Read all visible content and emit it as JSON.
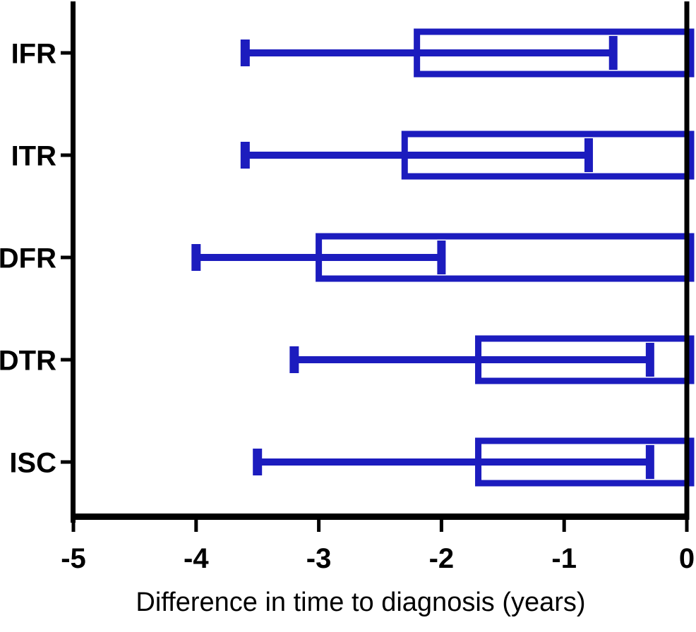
{
  "chart_data": {
    "type": "bar",
    "orientation": "horizontal",
    "title": "",
    "xlabel": "Difference in time to diagnosis (years)",
    "ylabel": "",
    "categories": [
      "IFR",
      "ITR",
      "DFR",
      "DTR",
      "ISC"
    ],
    "series": [
      {
        "name": "Difference in time to diagnosis",
        "values": [
          -2.2,
          -2.3,
          -3.0,
          -1.7,
          -1.7
        ],
        "error_low": [
          -3.6,
          -3.6,
          -4.0,
          -3.2,
          -3.5
        ],
        "error_high": [
          -0.6,
          -0.8,
          -2.0,
          -0.3,
          -0.3
        ]
      }
    ],
    "xlim": [
      -5,
      0
    ],
    "xticks": [
      -5,
      -4,
      -3,
      -2,
      -1,
      0
    ],
    "xtick_labels": [
      "-5",
      "-4",
      "-3",
      "-2",
      "-1",
      "0"
    ],
    "grid": false,
    "legend": null,
    "colors": {
      "bar_stroke": "#1c1cbe",
      "bar_fill": "#ffffff",
      "error_bar": "#1c1cbe",
      "axis": "#000000",
      "background": "#ffffff"
    }
  }
}
